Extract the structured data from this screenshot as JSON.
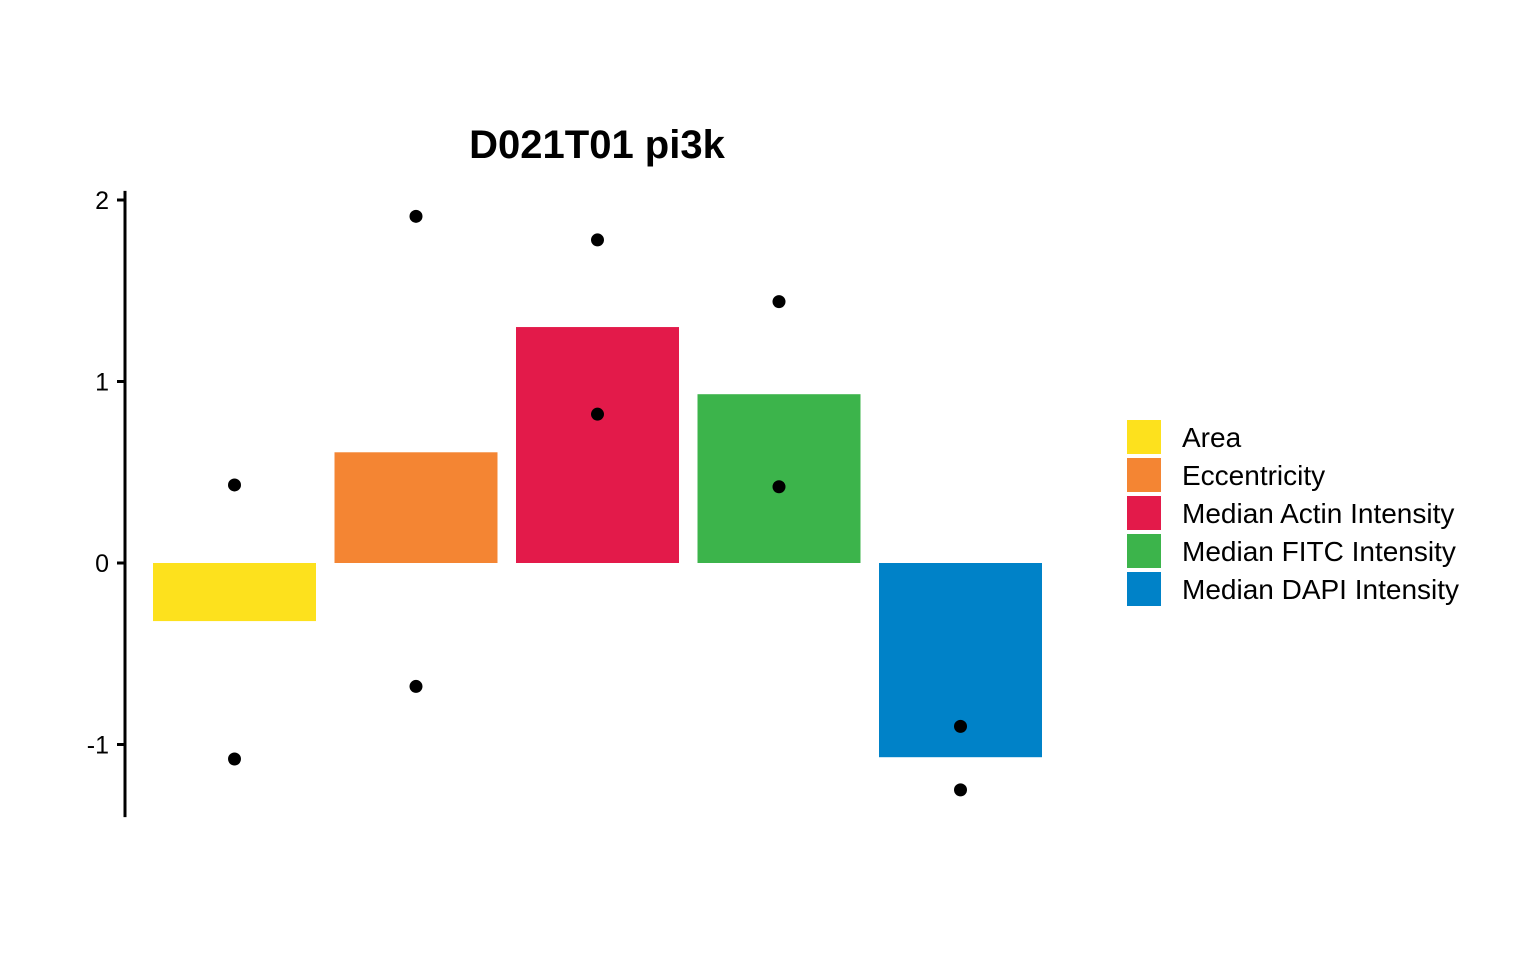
{
  "chart_data": {
    "type": "bar",
    "title": "D021T01 pi3k",
    "xlabel": "",
    "ylabel": "",
    "ylim": [
      -1.4,
      2.05
    ],
    "yticks": [
      2,
      1,
      0,
      -1
    ],
    "ytick_labels": [
      "2",
      "1",
      "0",
      "-1"
    ],
    "grid": false,
    "legend_position": "right",
    "categories": [
      "Area",
      "Eccentricity",
      "Median Actin Intensity",
      "Median FITC Intensity",
      "Median DAPI Intensity"
    ],
    "colors": [
      "#FDE11D",
      "#F48533",
      "#E31A4A",
      "#3CB44B",
      "#0082C8"
    ],
    "values": [
      -0.32,
      0.61,
      1.3,
      0.93,
      -1.07
    ],
    "points": [
      [
        0.43,
        -1.08
      ],
      [
        1.91,
        -0.68
      ],
      [
        1.78,
        0.82
      ],
      [
        1.44,
        0.42
      ],
      [
        -0.9,
        -1.25
      ]
    ]
  }
}
